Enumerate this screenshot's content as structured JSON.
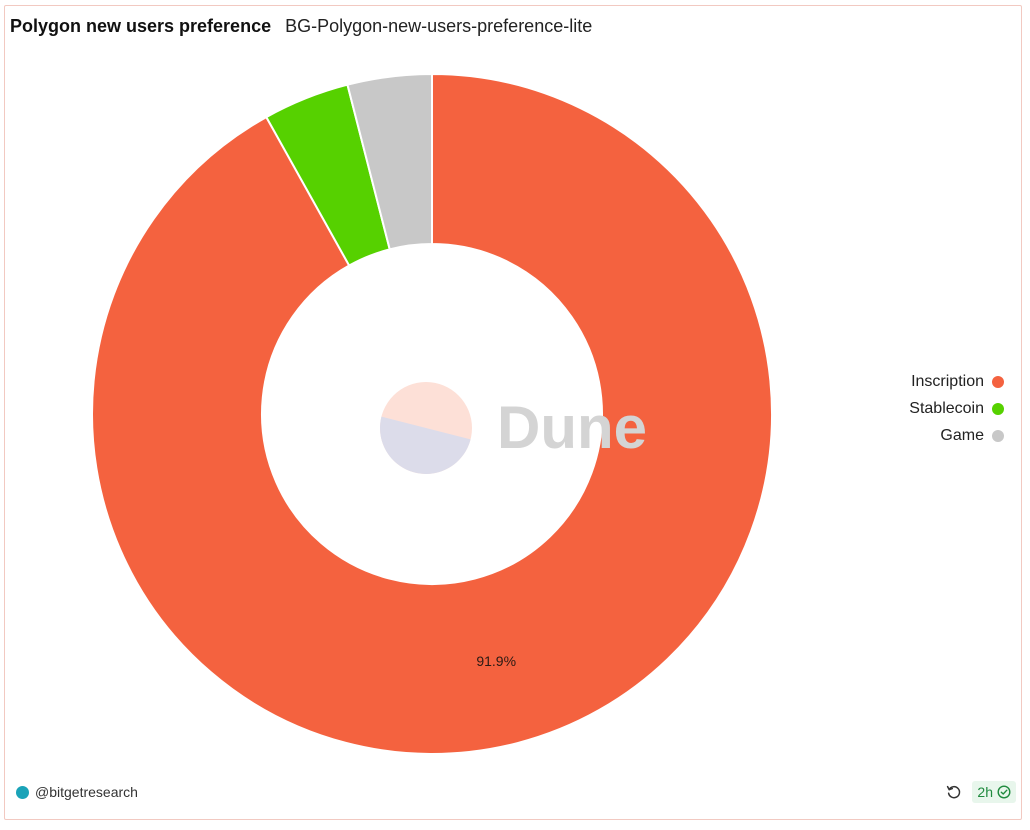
{
  "header": {
    "title": "Polygon new users preference",
    "subtitle": "BG-Polygon-new-users-preference-lite"
  },
  "watermark": {
    "text": "Dune"
  },
  "chart_data": {
    "type": "pie",
    "donut": true,
    "title": "Polygon new users preference",
    "subtitle": "BG-Polygon-new-users-preference-lite",
    "categories": [
      "Inscription",
      "Stablecoin",
      "Game"
    ],
    "values": [
      91.9,
      4.1,
      4.0
    ],
    "colors": [
      "#f4623f",
      "#56d100",
      "#c8c8c8"
    ],
    "data_labels": [
      "91.9%",
      "",
      ""
    ],
    "legend_position": "right"
  },
  "legend": {
    "items": [
      {
        "label": "Inscription",
        "color": "#f4623f"
      },
      {
        "label": "Stablecoin",
        "color": "#56d100"
      },
      {
        "label": "Game",
        "color": "#c8c8c8"
      }
    ]
  },
  "footer": {
    "author": "@bitgetresearch",
    "age": "2h",
    "refresh_icon": "refresh-icon",
    "check_icon": "check-circle-icon"
  }
}
